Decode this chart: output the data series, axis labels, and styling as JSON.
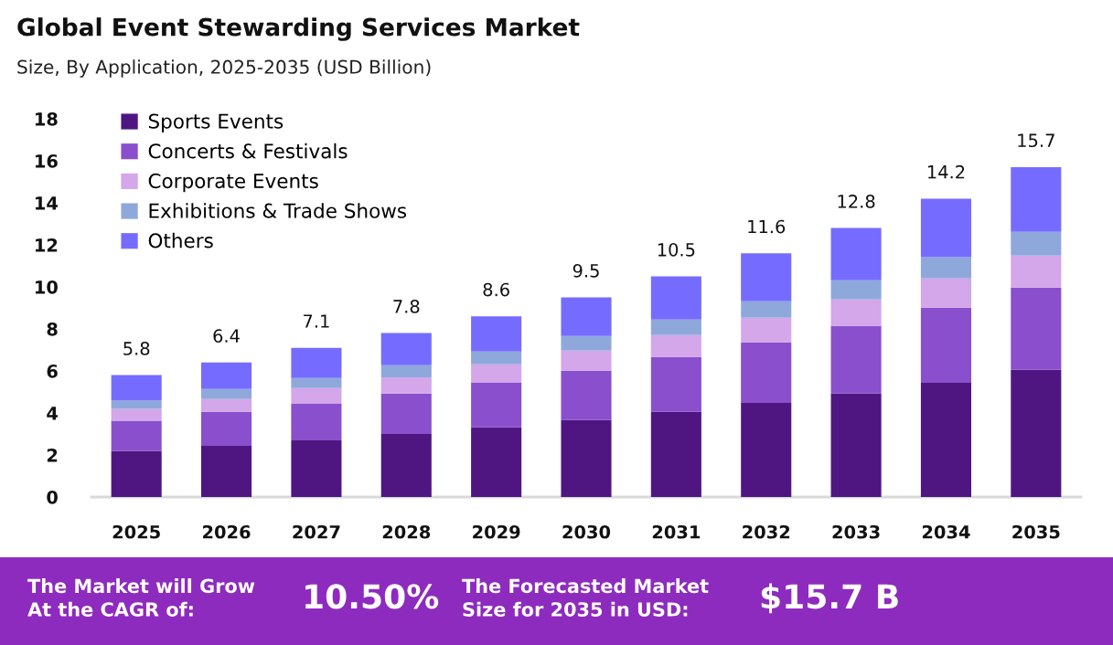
{
  "chart_data": {
    "type": "bar",
    "stacked": true,
    "title": "Global Event Stewarding Services Market",
    "subtitle": "Size, By Application, 2025-2035 (USD Billion)",
    "categories": [
      "2025",
      "2026",
      "2027",
      "2028",
      "2029",
      "2030",
      "2031",
      "2032",
      "2033",
      "2034",
      "2035"
    ],
    "series": [
      {
        "name": "Sports Events",
        "color": "#4f1681",
        "values": [
          2.2,
          2.44,
          2.7,
          3.0,
          3.31,
          3.66,
          4.05,
          4.48,
          4.92,
          5.44,
          6.05
        ]
      },
      {
        "name": "Concerts & Festivals",
        "color": "#8a4fcc",
        "values": [
          1.43,
          1.61,
          1.74,
          1.92,
          2.13,
          2.35,
          2.61,
          2.88,
          3.22,
          3.57,
          3.92
        ]
      },
      {
        "name": "Corporate Events",
        "color": "#d4a6ea",
        "values": [
          0.57,
          0.61,
          0.74,
          0.78,
          0.87,
          0.96,
          1.05,
          1.17,
          1.26,
          1.39,
          1.52
        ]
      },
      {
        "name": "Exhibitions & Trade Shows",
        "color": "#8fa8dc",
        "values": [
          0.39,
          0.48,
          0.48,
          0.57,
          0.61,
          0.69,
          0.74,
          0.79,
          0.92,
          1.01,
          1.13
        ]
      },
      {
        "name": "Others",
        "color": "#756cff",
        "values": [
          1.21,
          1.26,
          1.44,
          1.53,
          1.68,
          1.84,
          2.05,
          2.28,
          2.48,
          2.79,
          3.08
        ]
      }
    ],
    "totals": [
      "5.8",
      "6.4",
      "7.1",
      "7.8",
      "8.6",
      "9.5",
      "10.5",
      "11.6",
      "12.8",
      "14.2",
      "15.7"
    ],
    "ylim": [
      0,
      18
    ],
    "yticks": [
      0,
      2,
      4,
      6,
      8,
      10,
      12,
      14,
      16,
      18
    ],
    "legend": "top left",
    "annotations": [
      "The Market will Grow\nAt the CAGR of:",
      "10.50%",
      "The Forecasted Market\nSize for 2035 in USD:",
      "$15.7 B"
    ]
  }
}
